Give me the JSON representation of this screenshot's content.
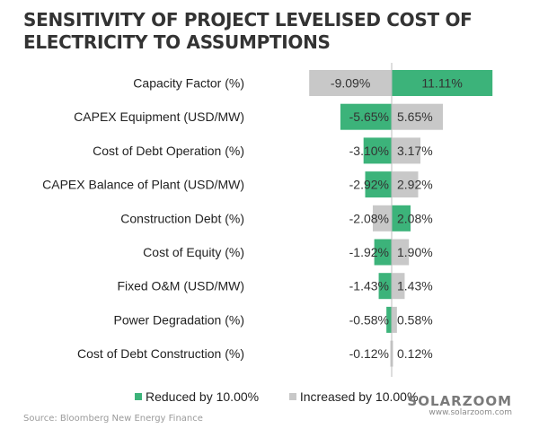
{
  "title_lines": [
    "SENSITIVITY OF PROJECT LEVELISED COST OF",
    "ELECTRICITY TO ASSUMPTIONS"
  ],
  "chart_data": {
    "type": "bar",
    "orientation": "horizontal",
    "subtype": "tornado",
    "title": "SENSITIVITY OF PROJECT LEVELISED COST OF ELECTRICITY TO ASSUMPTIONS",
    "categories": [
      "Capacity Factor (%)",
      "CAPEX Equipment (USD/MW)",
      "Cost of Debt Operation (%)",
      "CAPEX Balance of Plant (USD/MW)",
      "Construction Debt (%)",
      "Cost of Equity (%)",
      "Fixed O&M (USD/MW)",
      "Power Degradation (%)",
      "Cost of Debt Construction (%)"
    ],
    "bars": [
      {
        "negative": {
          "value": -9.09,
          "series": "Increased by 10.00%"
        },
        "positive": {
          "value": 11.11,
          "series": "Reduced by 10.00%"
        }
      },
      {
        "negative": {
          "value": -5.65,
          "series": "Reduced by 10.00%"
        },
        "positive": {
          "value": 5.65,
          "series": "Increased by 10.00%"
        }
      },
      {
        "negative": {
          "value": -3.1,
          "series": "Reduced by 10.00%"
        },
        "positive": {
          "value": 3.17,
          "series": "Increased by 10.00%"
        }
      },
      {
        "negative": {
          "value": -2.92,
          "series": "Reduced by 10.00%"
        },
        "positive": {
          "value": 2.92,
          "series": "Increased by 10.00%"
        }
      },
      {
        "negative": {
          "value": -2.08,
          "series": "Increased by 10.00%"
        },
        "positive": {
          "value": 2.08,
          "series": "Reduced by 10.00%"
        }
      },
      {
        "negative": {
          "value": -1.92,
          "series": "Reduced by 10.00%"
        },
        "positive": {
          "value": 1.9,
          "series": "Increased by 10.00%"
        }
      },
      {
        "negative": {
          "value": -1.43,
          "series": "Reduced by 10.00%"
        },
        "positive": {
          "value": 1.43,
          "series": "Increased by 10.00%"
        }
      },
      {
        "negative": {
          "value": -0.58,
          "series": "Reduced by 10.00%"
        },
        "positive": {
          "value": 0.58,
          "series": "Increased by 10.00%"
        }
      },
      {
        "negative": {
          "value": -0.12,
          "series": "Increased by 10.00%"
        },
        "positive": {
          "value": 0.12,
          "series": "Increased by 10.00%"
        }
      }
    ],
    "value_labels": [
      [
        "-9.09%",
        "11.11%"
      ],
      [
        "-5.65%",
        "5.65%"
      ],
      [
        "-3.10%",
        "3.17%"
      ],
      [
        "-2.92%",
        "2.92%"
      ],
      [
        "-2.08%",
        "2.08%"
      ],
      [
        "-1.92%",
        "1.90%"
      ],
      [
        "-1.43%",
        "1.43%"
      ],
      [
        "-0.58%",
        "0.58%"
      ],
      [
        "-0.12%",
        "0.12%"
      ]
    ],
    "series": [
      {
        "name": "Reduced by 10.00%",
        "color": "#3cb37a"
      },
      {
        "name": "Increased by 10.00%",
        "color": "#c8c8c8"
      }
    ],
    "xlim": [
      -9.5,
      12
    ],
    "xlabel": "",
    "ylabel": "",
    "grid": false,
    "legend_position": "bottom"
  },
  "legend": {
    "reduced": "Reduced by 10.00%",
    "increased": "Increased by 10.00%"
  },
  "source": "Source:  Bloomberg New Energy Finance",
  "watermark": {
    "brand": "SOLARZOOM",
    "url": "www.solarzoom.com"
  },
  "colors": {
    "green": "#3cb37a",
    "gray": "#c8c8c8",
    "axis": "#bdbdbd"
  }
}
